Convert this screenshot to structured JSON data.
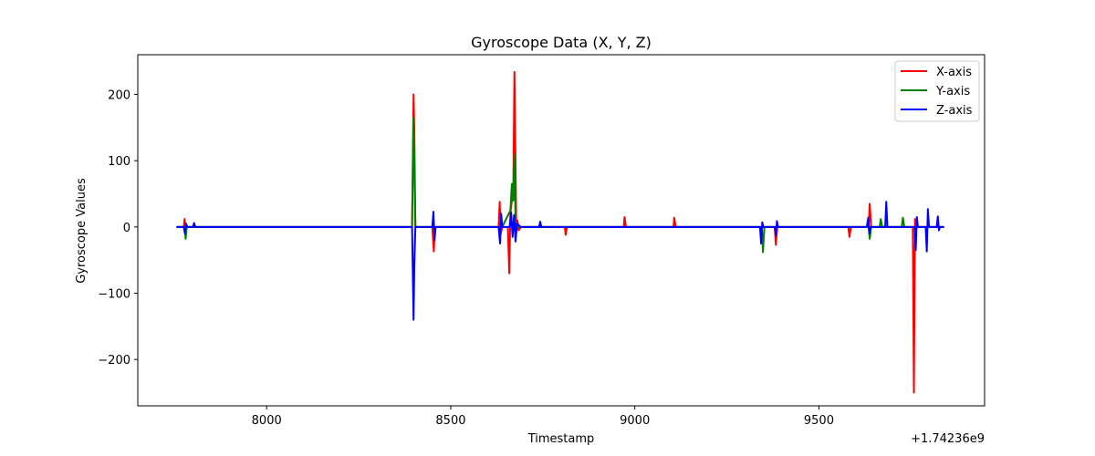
{
  "chart_data": {
    "type": "line",
    "title": "Gyroscope Data (X, Y, Z)",
    "xlabel": "Timestamp",
    "ylabel": "Gyroscope Values",
    "x_offset_label": "+1.74236e9",
    "xlim": [
      7650,
      9950
    ],
    "ylim": [
      -270,
      260
    ],
    "x_ticks": [
      8000,
      8500,
      9000,
      9500
    ],
    "x_tick_labels": [
      "8000",
      "8500",
      "9000",
      "9500"
    ],
    "y_ticks": [
      -200,
      -100,
      0,
      100,
      200
    ],
    "y_tick_labels": [
      "−200",
      "−100",
      "0",
      "100",
      "200"
    ],
    "grid": false,
    "legend_position": "top-right",
    "series": [
      {
        "name": "X-axis",
        "color": "#ff0000",
        "x": [
          7755,
          7775,
          7777,
          7780,
          7783,
          7786,
          8000,
          8200,
          8395,
          8399,
          8401,
          8404,
          8410,
          8450,
          8454,
          8457,
          8460,
          8630,
          8633,
          8636,
          8640,
          8655,
          8659,
          8662,
          8666,
          8670,
          8673,
          8676,
          8678,
          8681,
          8685,
          8690,
          8810,
          8812,
          8816,
          8970,
          8972,
          8976,
          9105,
          9107,
          9111,
          9345,
          9350,
          9380,
          9383,
          9387,
          9580,
          9583,
          9587,
          9635,
          9638,
          9642,
          9755,
          9758,
          9761,
          9764,
          9770,
          9840
        ],
        "y": [
          0,
          0,
          12,
          -5,
          2,
          0,
          0,
          0,
          0,
          200,
          150,
          0,
          0,
          0,
          -37,
          0,
          0,
          0,
          38,
          -10,
          0,
          0,
          -70,
          20,
          40,
          60,
          234,
          100,
          -5,
          10,
          -5,
          0,
          0,
          -12,
          0,
          0,
          15,
          0,
          0,
          14,
          0,
          0,
          0,
          0,
          -27,
          0,
          0,
          -15,
          0,
          0,
          35,
          0,
          0,
          -250,
          12,
          0,
          0,
          0
        ]
      },
      {
        "name": "Y-axis",
        "color": "#008000",
        "x": [
          7755,
          7777,
          7780,
          7783,
          7786,
          8000,
          8395,
          8399,
          8401,
          8404,
          8410,
          8640,
          8662,
          8666,
          8670,
          8673,
          8676,
          8679,
          8682,
          8690,
          9345,
          9348,
          9352,
          9360,
          9635,
          9638,
          9642,
          9665,
          9668,
          9672,
          9725,
          9728,
          9732,
          9840
        ],
        "y": [
          0,
          0,
          -18,
          0,
          0,
          0,
          0,
          165,
          100,
          0,
          0,
          0,
          25,
          65,
          40,
          110,
          10,
          -5,
          0,
          0,
          0,
          -38,
          0,
          0,
          0,
          -18,
          0,
          0,
          12,
          0,
          0,
          14,
          0,
          0
        ]
      },
      {
        "name": "Z-axis",
        "color": "#0000ff",
        "x": [
          7755,
          7775,
          7778,
          7781,
          7784,
          7800,
          7803,
          7806,
          8000,
          8395,
          8399,
          8401,
          8404,
          8450,
          8453,
          8456,
          8459,
          8630,
          8634,
          8637,
          8640,
          8660,
          8664,
          8668,
          8672,
          8676,
          8680,
          8690,
          8740,
          8743,
          8746,
          9340,
          9343,
          9346,
          9349,
          9380,
          9383,
          9386,
          9389,
          9630,
          9634,
          9637,
          9640,
          9680,
          9683,
          9686,
          9689,
          9760,
          9763,
          9766,
          9769,
          9790,
          9793,
          9796,
          9799,
          9820,
          9823,
          9826,
          9829,
          9840
        ],
        "y": [
          0,
          0,
          -10,
          5,
          0,
          0,
          6,
          0,
          0,
          0,
          -140,
          -60,
          0,
          0,
          23,
          -20,
          0,
          0,
          -25,
          20,
          0,
          0,
          22,
          -15,
          18,
          -22,
          5,
          0,
          0,
          8,
          0,
          0,
          -25,
          7,
          0,
          0,
          -12,
          9,
          0,
          0,
          14,
          -10,
          0,
          0,
          38,
          0,
          0,
          0,
          -35,
          15,
          0,
          0,
          -37,
          27,
          0,
          0,
          16,
          -5,
          0,
          0
        ]
      }
    ]
  }
}
